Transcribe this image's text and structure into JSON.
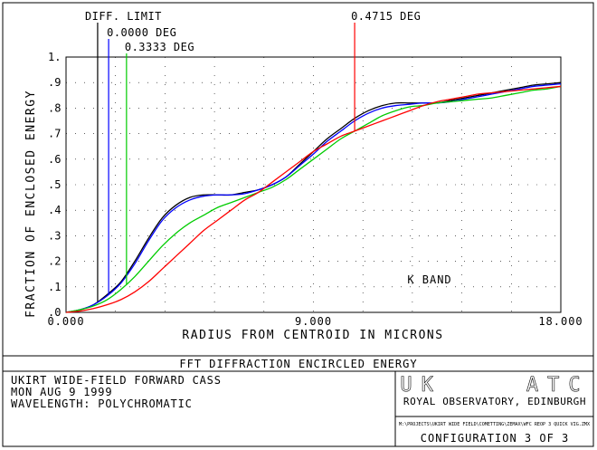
{
  "chart_data": {
    "type": "line",
    "xlabel": "RADIUS FROM CENTROID IN MICRONS",
    "ylabel": "FRACTION OF ENCLOSED ENERGY",
    "xlim": [
      0,
      18
    ],
    "ylim": [
      0,
      1
    ],
    "x_ticks": [
      "0.000",
      "9.000",
      "18.000"
    ],
    "y_ticks": [
      ".0",
      ".1",
      ".2",
      ".3",
      ".4",
      ".5",
      ".6",
      ".7",
      ".8",
      ".9",
      "1."
    ],
    "annotation": "K BAND",
    "field_labels": [
      {
        "text": "DIFF. LIMIT",
        "x": 1.15,
        "color": "#000000",
        "row": 0
      },
      {
        "text": "0.0000 DEG",
        "x": 1.55,
        "color": "#0000ff",
        "row": 1
      },
      {
        "text": "0.3333 DEG",
        "x": 2.2,
        "color": "#00cc00",
        "row": 2
      },
      {
        "text": "0.4715 DEG",
        "x": 10.5,
        "color": "#ff0000",
        "row": 0
      }
    ],
    "series": [
      {
        "name": "DIFF. LIMIT",
        "color": "#000000",
        "x": [
          0,
          0.5,
          1,
          1.5,
          2,
          2.5,
          3,
          3.5,
          4,
          4.5,
          5,
          5.5,
          6,
          6.5,
          7,
          7.5,
          8,
          8.5,
          9,
          9.5,
          10,
          10.5,
          11,
          11.5,
          12,
          12.5,
          13,
          13.5,
          14,
          14.5,
          15,
          15.5,
          16,
          16.5,
          17,
          17.5,
          18
        ],
        "values": [
          0,
          0.01,
          0.03,
          0.07,
          0.12,
          0.2,
          0.29,
          0.37,
          0.42,
          0.45,
          0.46,
          0.46,
          0.46,
          0.47,
          0.48,
          0.5,
          0.53,
          0.58,
          0.63,
          0.68,
          0.72,
          0.76,
          0.79,
          0.81,
          0.82,
          0.82,
          0.82,
          0.82,
          0.83,
          0.84,
          0.85,
          0.86,
          0.87,
          0.88,
          0.89,
          0.895,
          0.9
        ]
      },
      {
        "name": "0.0000 DEG",
        "color": "#0000ff",
        "x": [
          0,
          0.5,
          1,
          1.5,
          2,
          2.5,
          3,
          3.5,
          4,
          4.5,
          5,
          5.5,
          6,
          6.5,
          7,
          7.5,
          8,
          8.5,
          9,
          9.5,
          10,
          10.5,
          11,
          11.5,
          12,
          12.5,
          13,
          13.5,
          14,
          14.5,
          15,
          15.5,
          16,
          16.5,
          17,
          17.5,
          18
        ],
        "values": [
          0,
          0.01,
          0.03,
          0.065,
          0.115,
          0.19,
          0.28,
          0.36,
          0.41,
          0.44,
          0.455,
          0.46,
          0.46,
          0.465,
          0.48,
          0.5,
          0.53,
          0.575,
          0.62,
          0.67,
          0.71,
          0.75,
          0.78,
          0.8,
          0.81,
          0.815,
          0.82,
          0.82,
          0.825,
          0.835,
          0.845,
          0.855,
          0.865,
          0.875,
          0.885,
          0.89,
          0.895
        ]
      },
      {
        "name": "0.3333 DEG",
        "color": "#00cc00",
        "x": [
          0,
          0.5,
          1,
          1.5,
          2,
          2.5,
          3,
          3.5,
          4,
          4.5,
          5,
          5.5,
          6,
          6.5,
          7,
          7.5,
          8,
          8.5,
          9,
          9.5,
          10,
          10.5,
          11,
          11.5,
          12,
          12.5,
          13,
          13.5,
          14,
          14.5,
          15,
          15.5,
          16,
          16.5,
          17,
          17.5,
          18
        ],
        "values": [
          0,
          0.01,
          0.025,
          0.05,
          0.09,
          0.14,
          0.2,
          0.26,
          0.31,
          0.35,
          0.38,
          0.41,
          0.43,
          0.45,
          0.47,
          0.49,
          0.52,
          0.56,
          0.6,
          0.64,
          0.68,
          0.71,
          0.74,
          0.77,
          0.79,
          0.805,
          0.81,
          0.82,
          0.825,
          0.83,
          0.835,
          0.84,
          0.85,
          0.86,
          0.87,
          0.875,
          0.885
        ]
      },
      {
        "name": "0.4715 DEG",
        "color": "#ff0000",
        "x": [
          0,
          0.5,
          1,
          1.5,
          2,
          2.5,
          3,
          3.5,
          4,
          4.5,
          5,
          5.5,
          6,
          6.5,
          7,
          7.5,
          8,
          8.5,
          9,
          9.5,
          10,
          10.5,
          11,
          11.5,
          12,
          12.5,
          13,
          13.5,
          14,
          14.5,
          15,
          15.5,
          16,
          16.5,
          17,
          17.5,
          18
        ],
        "values": [
          0,
          0.005,
          0.015,
          0.03,
          0.05,
          0.08,
          0.12,
          0.17,
          0.22,
          0.27,
          0.32,
          0.36,
          0.4,
          0.44,
          0.47,
          0.51,
          0.55,
          0.59,
          0.63,
          0.66,
          0.69,
          0.71,
          0.73,
          0.75,
          0.77,
          0.79,
          0.81,
          0.825,
          0.835,
          0.845,
          0.855,
          0.86,
          0.865,
          0.87,
          0.875,
          0.88,
          0.885
        ]
      }
    ]
  },
  "title_bar": {
    "title": "FFT DIFFRACTION ENCIRCLED ENERGY"
  },
  "info": {
    "line1": "UKIRT WIDE-FIELD FORWARD CASS",
    "line2": "MON AUG 9 1999",
    "line3": "WAVELENGTH: POLYCHROMATIC"
  },
  "org": {
    "logo_text": "UK    ATC",
    "name": "ROYAL OBSERVATORY, EDINBURGH",
    "filepath": "M:\\PROJECTS\\UKIRT WIDE FIELD\\COMETTING\\ZEMAX\\WFC REOP 3 QUICK VIG.ZMX",
    "config": "CONFIGURATION 3 OF 3"
  }
}
